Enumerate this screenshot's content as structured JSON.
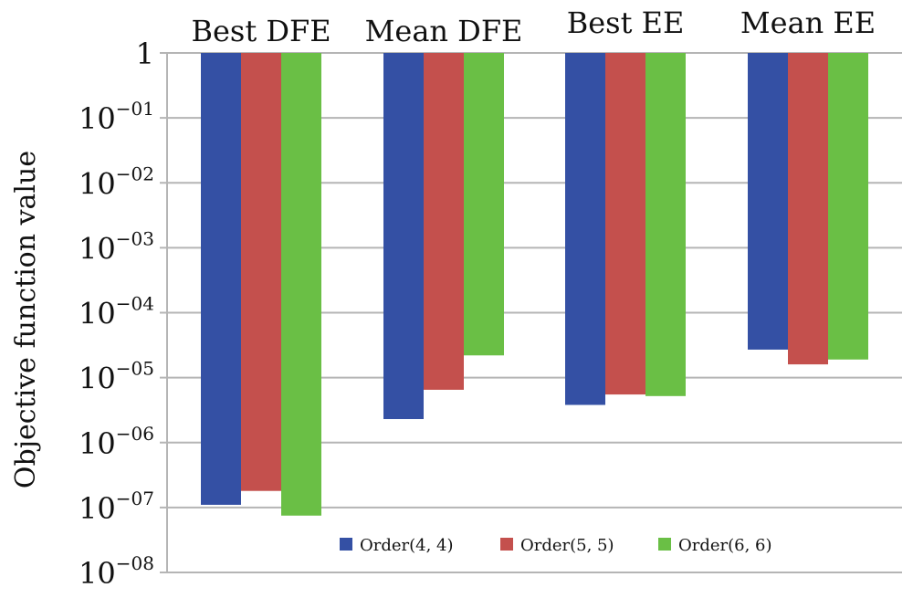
{
  "chart_data": {
    "type": "bar",
    "title": "",
    "xlabel": "",
    "ylabel": "Objective function value",
    "yscale": "log",
    "ylim": [
      1e-08,
      1
    ],
    "y_ticks": [
      {
        "value": 1,
        "label": "1"
      },
      {
        "value": 0.1,
        "base": "10",
        "exp": "−01"
      },
      {
        "value": 0.01,
        "base": "10",
        "exp": "−02"
      },
      {
        "value": 0.001,
        "base": "10",
        "exp": "−03"
      },
      {
        "value": 0.0001,
        "base": "10",
        "exp": "−04"
      },
      {
        "value": 1e-05,
        "base": "10",
        "exp": "−05"
      },
      {
        "value": 1e-06,
        "base": "10",
        "exp": "−06"
      },
      {
        "value": 1e-07,
        "base": "10",
        "exp": "−07"
      },
      {
        "value": 1e-08,
        "base": "10",
        "exp": "−08"
      }
    ],
    "grid": true,
    "bars_hang_from": 1,
    "categories": [
      "Best DFE",
      "Mean DFE",
      "Best EE",
      "Mean EE"
    ],
    "series": [
      {
        "name": "Order(4, 4)",
        "color": "#3450a4",
        "values": [
          1.1e-07,
          2.3e-06,
          3.8e-06,
          2.7e-05
        ]
      },
      {
        "name": "Order(5, 5)",
        "color": "#c4504d",
        "values": [
          1.8e-07,
          6.5e-06,
          5.5e-06,
          1.6e-05
        ]
      },
      {
        "name": "Order(6, 6)",
        "color": "#6abf45",
        "values": [
          7.5e-08,
          2.2e-05,
          5.2e-06,
          1.9e-05
        ]
      }
    ],
    "legend_position": "bottom-right"
  }
}
